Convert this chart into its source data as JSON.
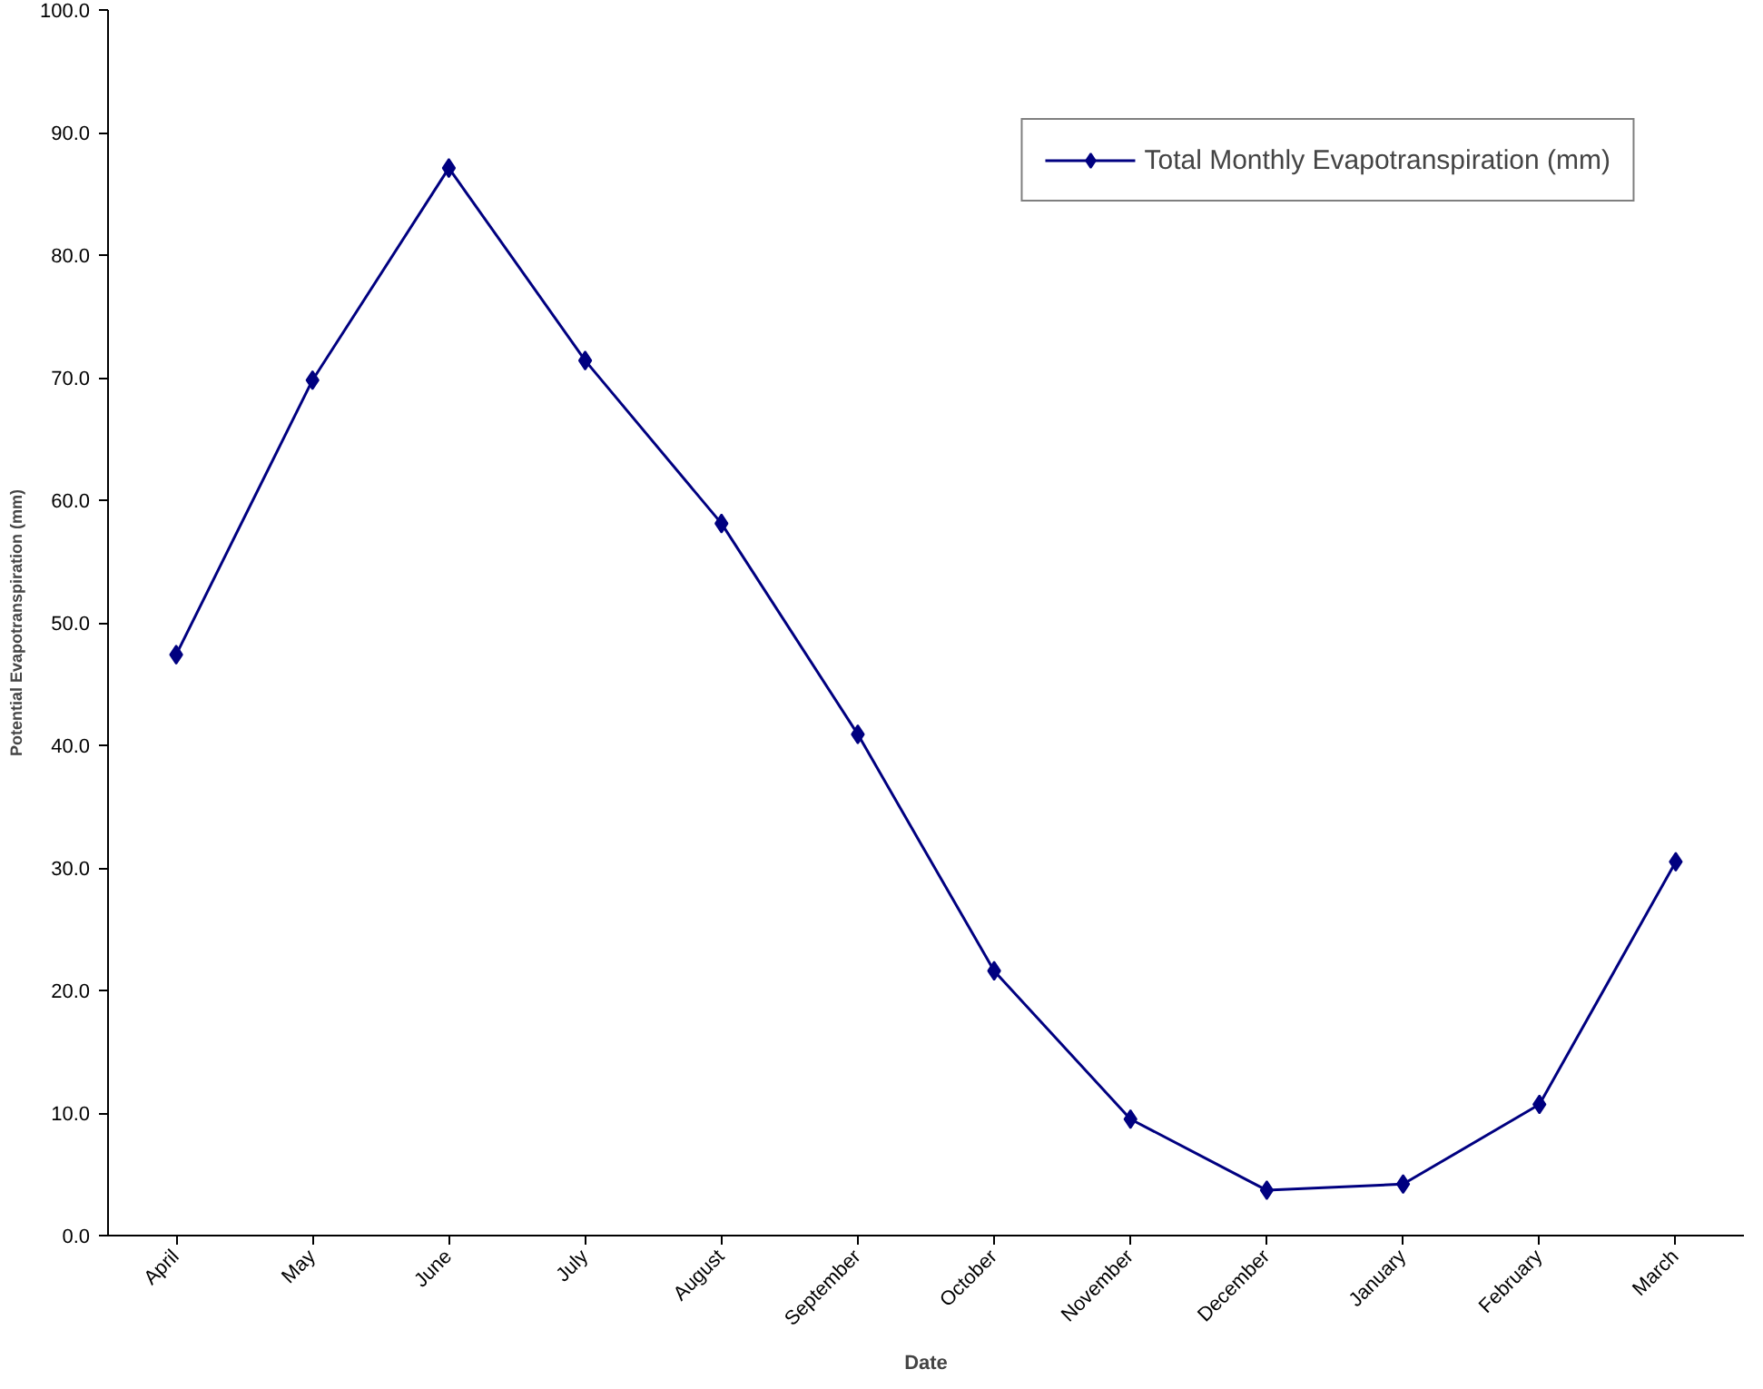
{
  "chart_data": {
    "type": "line",
    "xlabel": "Date",
    "ylabel": "Potential Evapotranspiration (mm)",
    "categories": [
      "April",
      "May",
      "June",
      "July",
      "August",
      "September",
      "October",
      "November",
      "December",
      "January",
      "February",
      "March"
    ],
    "series": [
      {
        "name": "Total Monthly Evapotranspiration (mm)",
        "color": "#000080",
        "values": [
          47.4,
          69.8,
          87.1,
          71.4,
          58.1,
          40.9,
          21.6,
          9.5,
          3.7,
          4.2,
          10.7,
          30.5
        ]
      }
    ],
    "ylim": [
      0,
      100
    ],
    "yticks": [
      {
        "value": 0,
        "label": "0.0"
      },
      {
        "value": 10,
        "label": "10.0"
      },
      {
        "value": 20,
        "label": "20.0"
      },
      {
        "value": 30,
        "label": "30.0"
      },
      {
        "value": 40,
        "label": "40.0"
      },
      {
        "value": 50,
        "label": "50.0"
      },
      {
        "value": 60,
        "label": "60.0"
      },
      {
        "value": 70,
        "label": "70.0"
      },
      {
        "value": 80,
        "label": "80.0"
      },
      {
        "value": 90,
        "label": "90.0"
      },
      {
        "value": 100,
        "label": "100.0"
      }
    ],
    "grid": false,
    "legend": "top right",
    "marker": "diamond",
    "line_style": "solid"
  }
}
